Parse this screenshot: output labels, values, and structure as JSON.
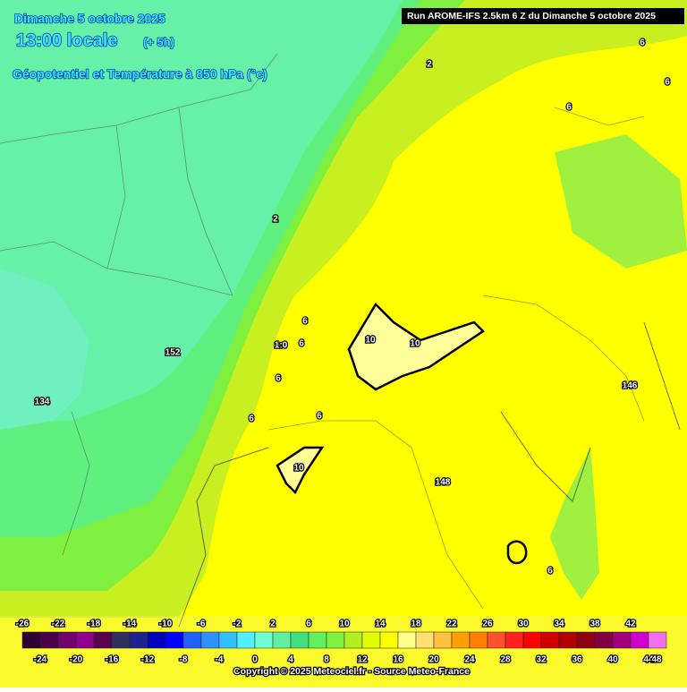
{
  "header": {
    "date": "Dimanche 5 octobre 2025",
    "time": "13:00 locale",
    "offset": "(+ 5h)",
    "field": "Géopotentiel et Température à 850 hPa (°c)",
    "run": "Run AROME-IFS 2.5km 6 Z du Dimanche 5 octobre 2025"
  },
  "contour_labels": [
    "2",
    "2",
    "6",
    "6",
    "6",
    "6",
    "1:0",
    "6",
    "6",
    "6",
    "10",
    "10",
    "10",
    "152",
    "134",
    "146",
    "148",
    "6",
    "6"
  ],
  "legend": {
    "top_labels": [
      -26,
      -22,
      -18,
      -14,
      -10,
      -6,
      -2,
      2,
      6,
      10,
      14,
      18,
      22,
      26,
      30,
      34,
      38,
      42
    ],
    "bottom_labels": [
      -24,
      -20,
      -16,
      -12,
      -8,
      -4,
      0,
      4,
      8,
      12,
      16,
      20,
      24,
      28,
      32,
      36,
      40,
      44,
      48
    ],
    "colors": [
      "#300030",
      "#4a004a",
      "#700070",
      "#900090",
      "#5a0050",
      "#303060",
      "#202090",
      "#0000c0",
      "#0000ff",
      "#2060ff",
      "#3090ff",
      "#30c0ff",
      "#50f0ff",
      "#70ffd0",
      "#60f0a0",
      "#40e080",
      "#60f060",
      "#80f040",
      "#b0f020",
      "#e0ff00",
      "#ffff00",
      "#ffff90",
      "#ffe070",
      "#ffc040",
      "#ffa000",
      "#ff8000",
      "#ff5030",
      "#ff2020",
      "#ff0000",
      "#d00000",
      "#b00000",
      "#900010",
      "#800040",
      "#a00080",
      "#d000d0",
      "#f070f0"
    ]
  },
  "copyright": "Copyright © 2025 Meteociel.fr - Source Meteo-France"
}
